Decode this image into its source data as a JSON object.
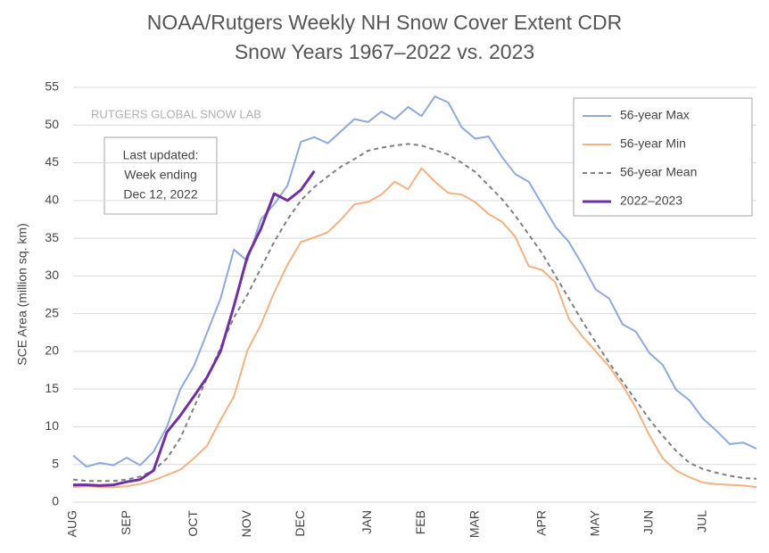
{
  "chart_data": {
    "type": "line",
    "title": "NOAA/Rutgers Weekly NH Snow Cover Extent CDR",
    "subtitle": "Snow Years 1967–2022 vs. 2023",
    "y_label": "SCE Area (million sq. km)",
    "watermark": "RUTGERS GLOBAL SNOW LAB",
    "note": [
      "Last updated:",
      "Week ending",
      "Dec 12, 2022"
    ],
    "categories": [
      "AUG",
      null,
      null,
      null,
      "SEP",
      null,
      null,
      null,
      null,
      "OCT",
      null,
      null,
      null,
      "NOV",
      null,
      null,
      null,
      "DEC",
      null,
      null,
      null,
      null,
      "JAN",
      null,
      null,
      null,
      "FEB",
      null,
      null,
      null,
      "MAR",
      null,
      null,
      null,
      null,
      "APR",
      null,
      null,
      null,
      "MAY",
      null,
      null,
      null,
      "JUN",
      null,
      null,
      null,
      "JUL",
      null,
      null,
      null,
      null
    ],
    "series": [
      {
        "name": "56-year Max",
        "color": "#8eaadb",
        "dashed": false,
        "values": [
          6.2,
          4.7,
          5.2,
          4.9,
          5.9,
          4.9,
          6.7,
          10,
          15,
          18,
          22.5,
          27,
          33.5,
          32,
          37.5,
          39.5,
          42,
          47.8,
          48.4,
          47.6,
          49.2,
          50.8,
          50.4,
          51.8,
          50.8,
          52.4,
          51.2,
          53.8,
          53,
          49.7,
          48.2,
          48.5,
          45.8,
          43.5,
          42.5,
          39.5,
          36.5,
          34.5,
          31.5,
          28.2,
          27,
          23.6,
          22.6,
          19.8,
          18.2,
          14.9,
          13.5,
          11.1,
          9.5,
          7.7,
          7.9,
          7.1
        ]
      },
      {
        "name": "56-year Min",
        "color": "#f4b183",
        "dashed": false,
        "values": [
          2.0,
          2.1,
          2.0,
          2.0,
          2.1,
          2.4,
          2.9,
          3.6,
          4.3,
          5.8,
          7.5,
          10.9,
          14,
          20.1,
          23.5,
          27.8,
          31.5,
          34.5,
          35.1,
          35.8,
          37.5,
          39.5,
          39.8,
          40.8,
          42.5,
          41.5,
          44.3,
          42.5,
          41,
          40.8,
          39.8,
          38.2,
          37.2,
          35.2,
          31.3,
          30.8,
          29.1,
          24.3,
          22,
          20,
          18,
          15.5,
          12.5,
          8.9,
          5.8,
          4.2,
          3.3,
          2.6,
          2.4,
          2.3,
          2.2,
          2.0
        ]
      },
      {
        "name": "56-year Mean",
        "color": "#7f7f7f",
        "dashed": true,
        "values": [
          3.0,
          2.8,
          2.8,
          2.8,
          3.0,
          3.4,
          4.2,
          5.8,
          8.5,
          12.5,
          16.5,
          20.5,
          24.5,
          27.5,
          31,
          34.5,
          37.5,
          40,
          41.8,
          43.2,
          44.5,
          45.5,
          46.6,
          47,
          47.3,
          47.5,
          47.3,
          46.7,
          46.1,
          45,
          43.8,
          42,
          40.2,
          38,
          35.5,
          33,
          30,
          27,
          24,
          21.2,
          18.5,
          16,
          13.5,
          11,
          8.8,
          6.8,
          5.2,
          4.4,
          3.9,
          3.5,
          3.2,
          3.1
        ]
      },
      {
        "name": "2022–2023",
        "color": "#7030a0",
        "dashed": false,
        "values": [
          2.3,
          2.3,
          2.2,
          2.3,
          2.7,
          3.0,
          4.2,
          9.3,
          11.5,
          14,
          16.6,
          20,
          26,
          32.6,
          36.2,
          40.9,
          40,
          41.4,
          43.9,
          null,
          null,
          null,
          null,
          null,
          null,
          null,
          null,
          null,
          null,
          null,
          null,
          null,
          null,
          null,
          null,
          null,
          null,
          null,
          null,
          null,
          null,
          null,
          null,
          null,
          null,
          null,
          null,
          null,
          null,
          null,
          null,
          null
        ]
      }
    ],
    "ylim": [
      0,
      55
    ],
    "yticks": [
      0,
      5,
      10,
      15,
      20,
      25,
      30,
      35,
      40,
      45,
      50,
      55
    ],
    "grid": true,
    "legend": "top-right"
  }
}
